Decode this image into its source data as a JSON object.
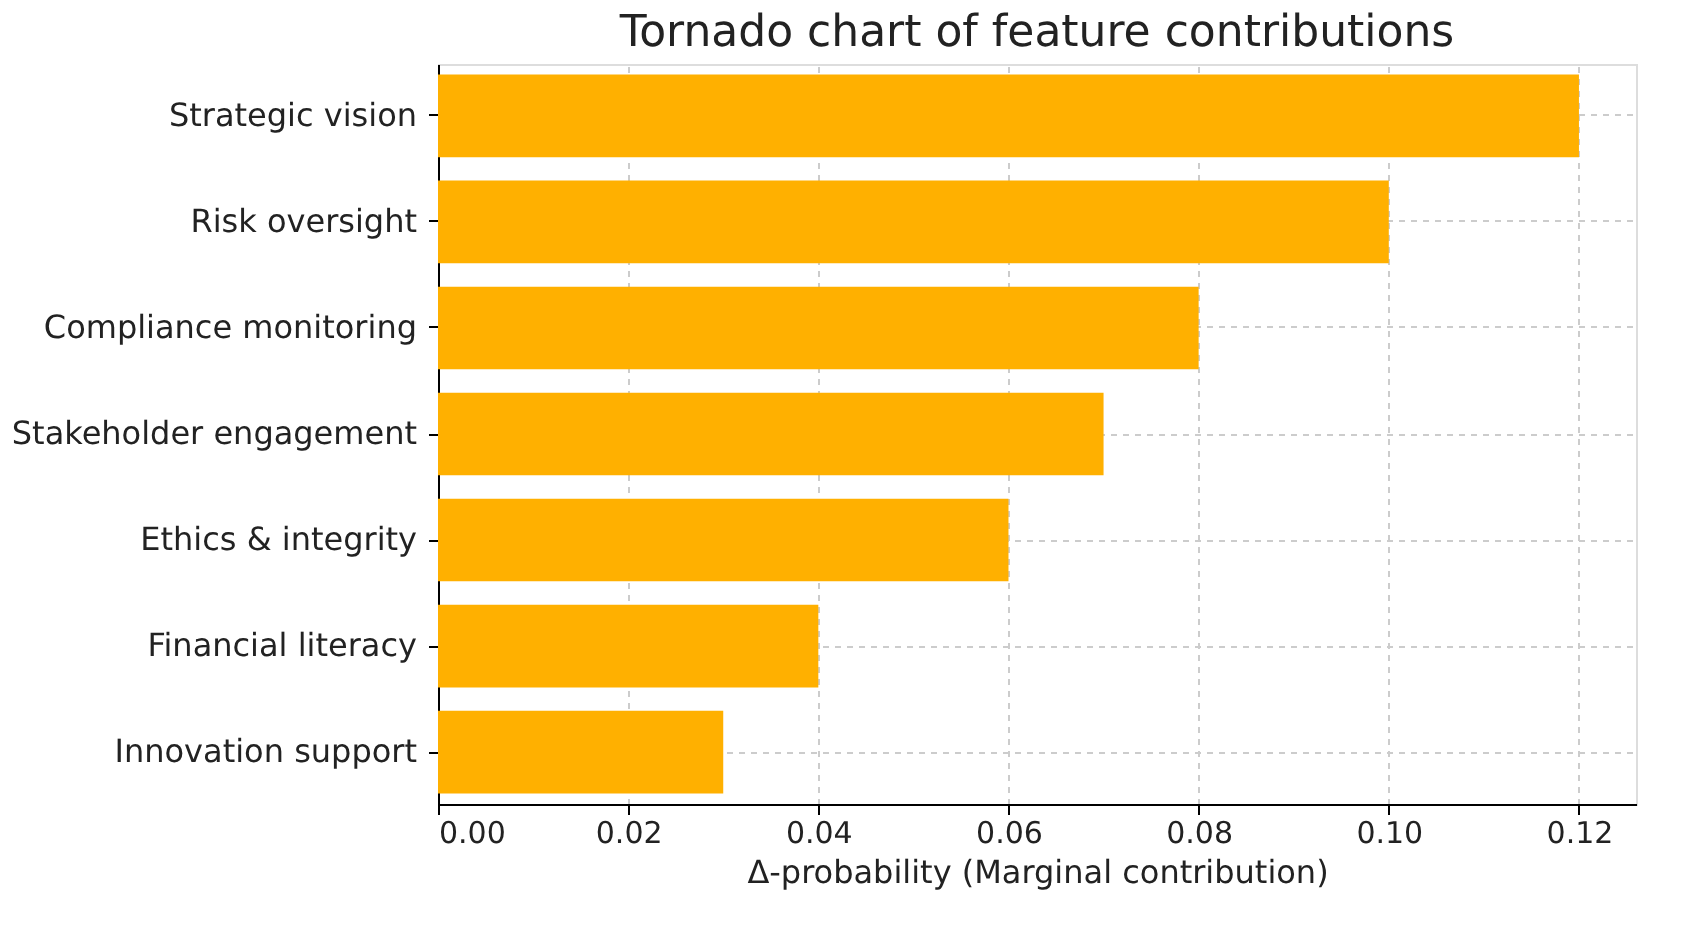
{
  "chart_data": {
    "type": "bar",
    "orientation": "horizontal",
    "title": "Tornado chart of feature contributions",
    "xlabel": "Δ-probability (Marginal contribution)",
    "categories": [
      "Strategic vision",
      "Risk oversight",
      "Compliance monitoring",
      "Stakeholder engagement",
      "Ethics & integrity",
      "Financial literacy",
      "Innovation support"
    ],
    "values": [
      0.12,
      0.1,
      0.08,
      0.07,
      0.06,
      0.04,
      0.03
    ],
    "color": "#ffb000",
    "xlim": [
      0,
      0.126
    ],
    "xticks": [
      {
        "value": 0,
        "label": "0.00"
      },
      {
        "value": 0.02,
        "label": "0.02"
      },
      {
        "value": 0.04,
        "label": "0.04"
      },
      {
        "value": 0.06,
        "label": "0.06"
      },
      {
        "value": 0.08,
        "label": "0.08"
      },
      {
        "value": 0.1,
        "label": "0.10"
      },
      {
        "value": 0.12,
        "label": "0.12"
      }
    ],
    "grid": true
  }
}
